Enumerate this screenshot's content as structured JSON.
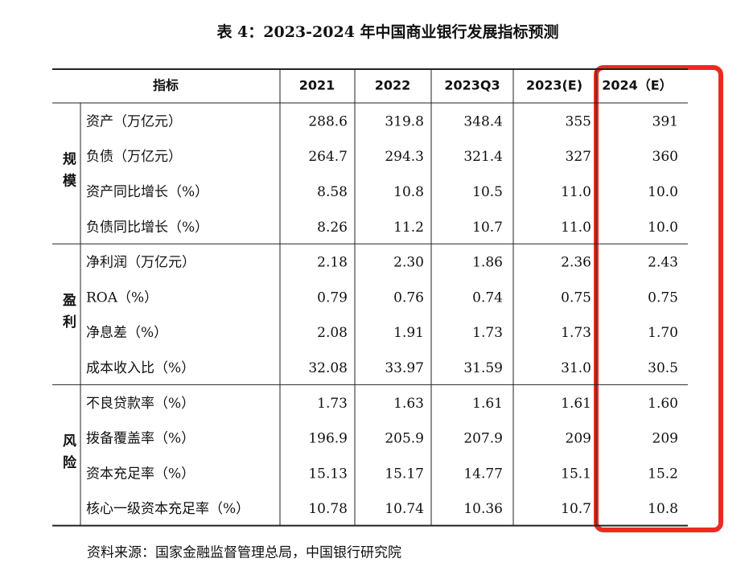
{
  "title": "表 4：2023-2024 年中国商业银行发展指标预测",
  "table": {
    "header": [
      "指标",
      "2021",
      "2022",
      "2023Q3",
      "2023(E)",
      "2024（E）"
    ],
    "groups": [
      {
        "label": "规模",
        "rows": [
          [
            "资产（万亿元）",
            "288.6",
            "319.8",
            "348.4",
            "355",
            "391"
          ],
          [
            "负债（万亿元）",
            "264.7",
            "294.3",
            "321.4",
            "327",
            "360"
          ],
          [
            "资产同比增长（%）",
            "8.58",
            "10.8",
            "10.5",
            "11.0",
            "10.0"
          ],
          [
            "负债同比增长（%）",
            "8.26",
            "11.2",
            "10.7",
            "11.0",
            "10.0"
          ]
        ]
      },
      {
        "label": "盈利",
        "rows": [
          [
            "净利润（万亿元）",
            "2.18",
            "2.30",
            "1.86",
            "2.36",
            "2.43"
          ],
          [
            "ROA（%）",
            "0.79",
            "0.76",
            "0.74",
            "0.75",
            "0.75"
          ],
          [
            "净息差（%）",
            "2.08",
            "1.91",
            "1.73",
            "1.73",
            "1.70"
          ],
          [
            "成本收入比（%）",
            "32.08",
            "33.97",
            "31.59",
            "31.0",
            "30.5"
          ]
        ]
      },
      {
        "label": "风险",
        "rows": [
          [
            "不良贷款率（%）",
            "1.73",
            "1.63",
            "1.61",
            "1.61",
            "1.60"
          ],
          [
            "拨备覆盖率（%）",
            "196.9",
            "205.9",
            "207.9",
            "209",
            "209"
          ],
          [
            "资本充足率（%）",
            "15.13",
            "15.17",
            "14.77",
            "15.1",
            "15.2"
          ],
          [
            "核心一级资本充足率（%）",
            "10.78",
            "10.74",
            "10.36",
            "10.7",
            "10.8"
          ]
        ]
      }
    ]
  },
  "source": "资料来源：国家金融监督管理总局，中国银行研究院"
}
